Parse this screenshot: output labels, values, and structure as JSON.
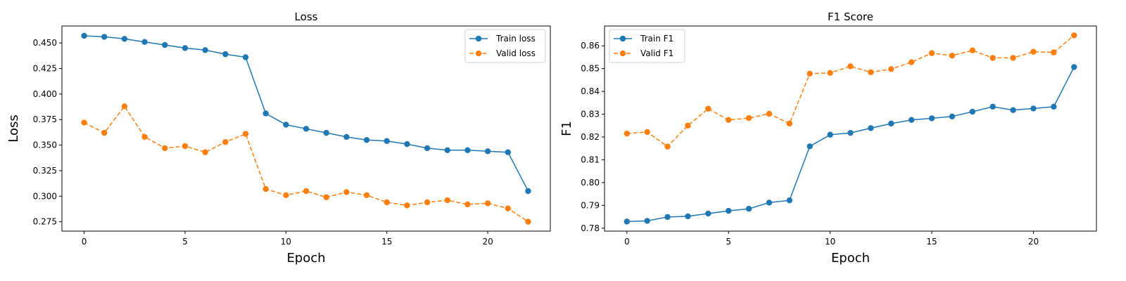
{
  "chart_data": [
    {
      "type": "line",
      "title": "Loss",
      "xlabel": "Epoch",
      "ylabel": "Loss",
      "x": [
        0,
        1,
        2,
        3,
        4,
        5,
        6,
        7,
        8,
        9,
        10,
        11,
        12,
        13,
        14,
        15,
        16,
        17,
        18,
        19,
        20,
        21,
        22
      ],
      "xlim": [
        -1.1,
        23.1
      ],
      "ylim": [
        0.2658,
        0.4666
      ],
      "xticks": [
        0,
        5,
        10,
        15,
        20
      ],
      "yticks": [
        0.275,
        0.3,
        0.325,
        0.35,
        0.375,
        0.4,
        0.425,
        0.45
      ],
      "ytick_labels": [
        "0.275",
        "0.300",
        "0.325",
        "0.350",
        "0.375",
        "0.400",
        "0.425",
        "0.450"
      ],
      "grid": false,
      "legend_position": "top-right",
      "series": [
        {
          "name": "Train loss",
          "color": "#1f77b4",
          "linestyle": "solid",
          "marker": "circle",
          "values": [
            0.457,
            0.456,
            0.454,
            0.451,
            0.448,
            0.445,
            0.443,
            0.439,
            0.436,
            0.381,
            0.37,
            0.366,
            0.362,
            0.358,
            0.355,
            0.354,
            0.351,
            0.347,
            0.345,
            0.345,
            0.344,
            0.343,
            0.305
          ]
        },
        {
          "name": "Valid loss",
          "color": "#ff7f0e",
          "linestyle": "dashed",
          "marker": "circle",
          "values": [
            0.372,
            0.362,
            0.388,
            0.358,
            0.347,
            0.349,
            0.343,
            0.353,
            0.361,
            0.307,
            0.301,
            0.305,
            0.299,
            0.304,
            0.301,
            0.294,
            0.291,
            0.294,
            0.296,
            0.292,
            0.293,
            0.288,
            0.275
          ]
        }
      ]
    },
    {
      "type": "line",
      "title": "F1 Score",
      "xlabel": "Epoch",
      "ylabel": "F1",
      "x": [
        0,
        1,
        2,
        3,
        4,
        5,
        6,
        7,
        8,
        9,
        10,
        11,
        12,
        13,
        14,
        15,
        16,
        17,
        18,
        19,
        20,
        21,
        22
      ],
      "xlim": [
        -1.1,
        23.1
      ],
      "ylim": [
        0.7787,
        0.8687
      ],
      "xticks": [
        0,
        5,
        10,
        15,
        20
      ],
      "yticks": [
        0.78,
        0.79,
        0.8,
        0.81,
        0.82,
        0.83,
        0.84,
        0.85,
        0.86
      ],
      "ytick_labels": [
        "0.78",
        "0.79",
        "0.80",
        "0.81",
        "0.82",
        "0.83",
        "0.84",
        "0.85",
        "0.86"
      ],
      "grid": false,
      "legend_position": "top-left",
      "series": [
        {
          "name": "Train F1",
          "color": "#1f77b4",
          "linestyle": "solid",
          "marker": "circle",
          "values": [
            0.7829,
            0.7832,
            0.7849,
            0.7852,
            0.7864,
            0.7876,
            0.7885,
            0.7912,
            0.7922,
            0.8159,
            0.821,
            0.8218,
            0.8239,
            0.8259,
            0.8275,
            0.8282,
            0.829,
            0.8311,
            0.8333,
            0.8318,
            0.8325,
            0.8333,
            0.8507
          ]
        },
        {
          "name": "Valid F1",
          "color": "#ff7f0e",
          "linestyle": "dashed",
          "marker": "circle",
          "values": [
            0.8215,
            0.8222,
            0.8158,
            0.825,
            0.8324,
            0.8275,
            0.8283,
            0.8302,
            0.8259,
            0.8478,
            0.8481,
            0.851,
            0.8484,
            0.8498,
            0.8528,
            0.8568,
            0.8557,
            0.858,
            0.8547,
            0.8547,
            0.8574,
            0.8571,
            0.8646
          ]
        }
      ]
    }
  ]
}
